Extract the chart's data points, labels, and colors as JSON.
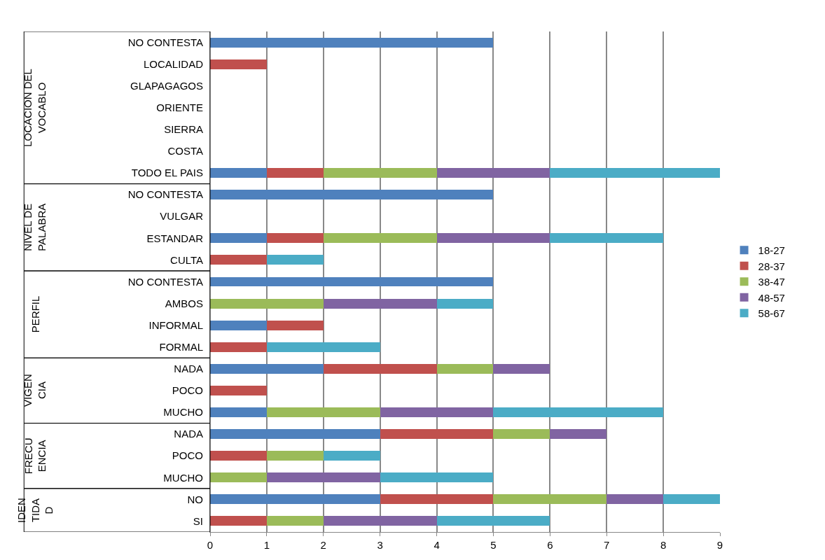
{
  "chart_data": {
    "type": "bar",
    "orientation": "horizontal",
    "stacked": true,
    "categories": [
      "NO CONTESTA",
      "LOCALIDAD",
      "GLAPAGAGOS",
      "ORIENTE",
      "SIERRA",
      "COSTA",
      "TODO EL PAIS",
      "NO CONTESTA",
      "VULGAR",
      "ESTANDAR",
      "CULTA",
      "NO CONTESTA",
      "AMBOS",
      "INFORMAL",
      "FORMAL",
      "NADA",
      "POCO",
      "MUCHO",
      "NADA",
      "POCO",
      "MUCHO",
      "NO",
      "SI"
    ],
    "series": [
      {
        "name": "18-27",
        "color": "#4f81bd",
        "values": [
          5,
          0,
          0,
          0,
          0,
          0,
          1,
          5,
          0,
          1,
          0,
          5,
          0,
          1,
          0,
          2,
          0,
          1,
          3,
          0,
          0,
          3,
          0
        ]
      },
      {
        "name": "28-37",
        "color": "#c0504d",
        "values": [
          0,
          1,
          0,
          0,
          0,
          0,
          1,
          0,
          0,
          1,
          1,
          0,
          0,
          1,
          1,
          2,
          1,
          0,
          2,
          1,
          0,
          2,
          1
        ]
      },
      {
        "name": "38-47",
        "color": "#9bbb59",
        "values": [
          0,
          0,
          0,
          0,
          0,
          0,
          2,
          0,
          0,
          2,
          0,
          0,
          2,
          0,
          0,
          1,
          0,
          2,
          1,
          1,
          1,
          2,
          1
        ]
      },
      {
        "name": "48-57",
        "color": "#8064a2",
        "values": [
          0,
          0,
          0,
          0,
          0,
          0,
          2,
          0,
          0,
          2,
          0,
          0,
          2,
          0,
          0,
          1,
          0,
          2,
          1,
          0,
          2,
          1,
          2
        ]
      },
      {
        "name": "58-67",
        "color": "#4bacc6",
        "values": [
          0,
          0,
          0,
          0,
          0,
          0,
          3,
          0,
          0,
          2,
          1,
          0,
          1,
          0,
          2,
          0,
          0,
          3,
          0,
          1,
          2,
          1,
          2
        ]
      }
    ],
    "annotations": [
      "LOCACION DEL\nVOCABLO",
      "NIVEL DE\nPALABRA",
      "PERFIL",
      "VIGEN\nCIA",
      "FRECU\nENCIA",
      "IDEN\nTIDA\nD"
    ],
    "xlim": [
      0,
      9
    ],
    "xticks": [
      0,
      1,
      2,
      3,
      4,
      5,
      6,
      7,
      8,
      9
    ],
    "grid": "x",
    "legend": "right"
  }
}
